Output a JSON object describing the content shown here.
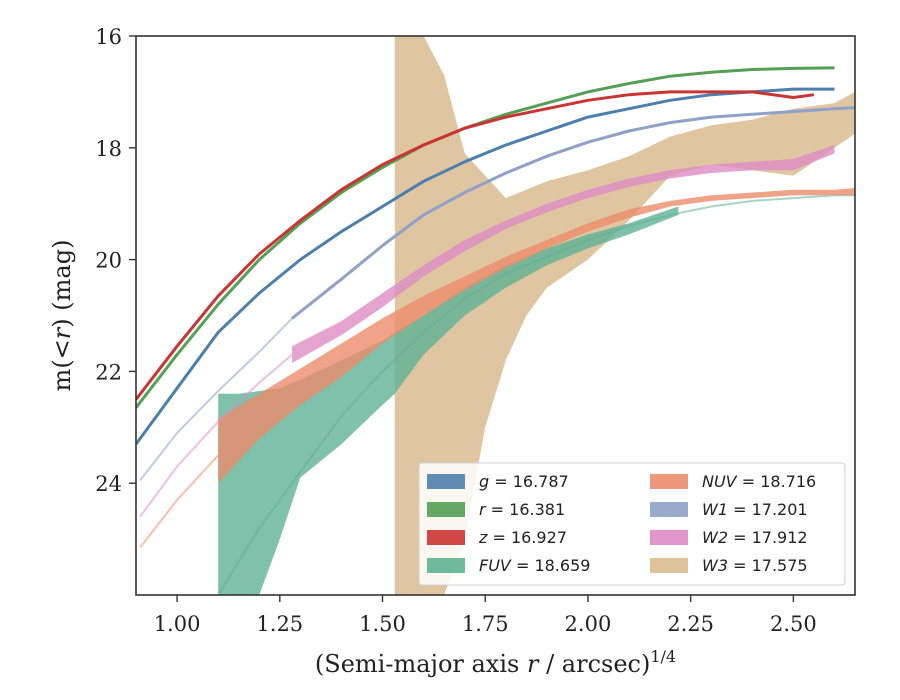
{
  "chart_data": {
    "type": "line",
    "title": "",
    "xlabel": "(Semi-major axis r / arcsec)",
    "xlabel_parts": {
      "pre": "(Semi-major axis ",
      "var": "r",
      "post": " / arcsec)",
      "sup": "1/4"
    },
    "ylabel": "m(< r) (mag)",
    "ylabel_parts": {
      "pre": "m(<",
      "var": "r",
      "post": ") (mag)"
    },
    "xlim": [
      0.9,
      2.65
    ],
    "ylim": [
      26.0,
      16.0
    ],
    "y_inverted": true,
    "xticks": [
      "1.00",
      "1.25",
      "1.50",
      "1.75",
      "2.00",
      "2.25",
      "2.50"
    ],
    "xtick_values": [
      1.0,
      1.25,
      1.5,
      1.75,
      2.0,
      2.25,
      2.5
    ],
    "yticks": [
      "16",
      "18",
      "20",
      "22",
      "24"
    ],
    "ytick_values": [
      16,
      18,
      20,
      22,
      24
    ],
    "grid": false,
    "legend_position": "lower-right",
    "legend_columns": 2,
    "series": [
      {
        "name": "g = 16.787",
        "band": "g",
        "mag": "16.787",
        "color": "#4c7fac",
        "x": [
          0.9,
          1.0,
          1.1,
          1.2,
          1.3,
          1.4,
          1.5,
          1.6,
          1.7,
          1.8,
          1.9,
          2.0,
          2.1,
          2.2,
          2.3,
          2.4,
          2.5,
          2.6
        ],
        "y": [
          23.3,
          22.3,
          21.3,
          20.6,
          20.0,
          19.5,
          19.05,
          18.6,
          18.25,
          17.95,
          17.7,
          17.45,
          17.3,
          17.15,
          17.05,
          17.0,
          16.95,
          16.95
        ]
      },
      {
        "name": "r = 16.381",
        "band": "r",
        "mag": "16.381",
        "color": "#55a055",
        "x": [
          0.9,
          1.0,
          1.1,
          1.2,
          1.3,
          1.4,
          1.5,
          1.6,
          1.7,
          1.8,
          1.9,
          2.0,
          2.1,
          2.2,
          2.3,
          2.4,
          2.5,
          2.6
        ],
        "y": [
          22.65,
          21.7,
          20.8,
          20.0,
          19.35,
          18.8,
          18.35,
          17.95,
          17.65,
          17.4,
          17.2,
          17.0,
          16.85,
          16.72,
          16.65,
          16.6,
          16.58,
          16.57
        ]
      },
      {
        "name": "z = 16.927",
        "band": "z",
        "mag": "16.927",
        "color": "#cc3333",
        "x": [
          0.9,
          1.0,
          1.1,
          1.2,
          1.3,
          1.4,
          1.5,
          1.6,
          1.7,
          1.8,
          1.9,
          2.0,
          2.1,
          2.2,
          2.3,
          2.4,
          2.5,
          2.55
        ],
        "y": [
          22.5,
          21.55,
          20.65,
          19.9,
          19.3,
          18.75,
          18.3,
          17.95,
          17.65,
          17.45,
          17.3,
          17.15,
          17.05,
          17.0,
          17.0,
          17.0,
          17.1,
          17.05
        ]
      },
      {
        "name": "FUV = 18.659",
        "band": "FUV",
        "mag": "18.659",
        "color": "#5fb195",
        "x": [
          1.1,
          1.15,
          1.2,
          1.25,
          1.3,
          1.4,
          1.5,
          1.53,
          1.6,
          1.7,
          1.8,
          1.9,
          2.0,
          2.1,
          2.22
        ],
        "y_upper": [
          22.4,
          22.4,
          22.35,
          22.3,
          22.15,
          21.8,
          21.45,
          21.3,
          21.0,
          20.5,
          20.1,
          19.8,
          19.55,
          19.35,
          19.05
        ],
        "y_lower": [
          26.0,
          26.0,
          26.0,
          25.0,
          23.9,
          23.3,
          22.6,
          22.4,
          21.7,
          21.0,
          20.5,
          20.1,
          19.8,
          19.55,
          19.2
        ],
        "x_ext": [
          1.1,
          1.2,
          1.3,
          1.4,
          1.5,
          1.6,
          1.7,
          1.8,
          1.9,
          2.0,
          2.1,
          2.2,
          2.3,
          2.4,
          2.5,
          2.6,
          2.65
        ],
        "y_ext": [
          26.0,
          24.8,
          23.8,
          22.8,
          22.0,
          21.3,
          20.7,
          20.25,
          19.95,
          19.65,
          19.4,
          19.2,
          19.05,
          18.95,
          18.9,
          18.85,
          18.85
        ]
      },
      {
        "name": "NUV = 18.716",
        "band": "NUV",
        "mag": "18.716",
        "color": "#ec8c6c",
        "x": [
          1.1,
          1.2,
          1.3,
          1.4,
          1.5,
          1.6,
          1.7,
          1.8,
          1.9,
          2.0,
          2.1,
          2.2,
          2.3,
          2.4,
          2.5,
          2.6,
          2.65
        ],
        "y_upper": [
          22.85,
          22.4,
          21.95,
          21.5,
          21.05,
          20.65,
          20.3,
          19.95,
          19.65,
          19.35,
          19.1,
          18.95,
          18.85,
          18.8,
          18.75,
          18.75,
          18.72
        ],
        "y_lower": [
          24.0,
          23.2,
          22.6,
          22.1,
          21.5,
          21.0,
          20.55,
          20.15,
          19.8,
          19.5,
          19.25,
          19.05,
          18.95,
          18.9,
          18.85,
          18.85,
          18.85
        ],
        "x_ext": [
          0.91,
          1.0,
          1.1
        ],
        "y_ext": [
          25.15,
          24.3,
          23.5
        ]
      },
      {
        "name": "W1 = 17.201",
        "band": "W1",
        "mag": "17.201",
        "color": "#8fa1c8",
        "x": [
          1.28,
          1.4,
          1.5,
          1.6,
          1.7,
          1.8,
          1.9,
          2.0,
          2.1,
          2.2,
          2.3,
          2.4,
          2.5,
          2.6,
          2.65
        ],
        "y": [
          21.05,
          20.35,
          19.75,
          19.2,
          18.8,
          18.45,
          18.15,
          17.9,
          17.7,
          17.55,
          17.45,
          17.4,
          17.35,
          17.3,
          17.28
        ],
        "x_ext": [
          0.91,
          1.0,
          1.1,
          1.2,
          1.28
        ],
        "y_ext": [
          23.95,
          23.1,
          22.35,
          21.65,
          21.05
        ]
      },
      {
        "name": "W2 = 17.912",
        "band": "W2",
        "mag": "17.912",
        "color": "#de8cc4",
        "x": [
          1.28,
          1.4,
          1.5,
          1.6,
          1.7,
          1.8,
          1.9,
          2.0,
          2.1,
          2.2,
          2.3,
          2.4,
          2.5,
          2.6
        ],
        "y_upper": [
          21.55,
          21.1,
          20.6,
          20.1,
          19.65,
          19.3,
          19.0,
          18.75,
          18.55,
          18.4,
          18.3,
          18.25,
          18.2,
          17.95
        ],
        "y_lower": [
          21.85,
          21.35,
          20.85,
          20.3,
          19.85,
          19.45,
          19.15,
          18.9,
          18.7,
          18.55,
          18.45,
          18.4,
          18.4,
          18.1
        ],
        "x_ext": [
          0.91,
          1.0,
          1.1,
          1.2,
          1.28
        ],
        "y_ext": [
          24.6,
          23.7,
          22.9,
          22.2,
          21.7
        ]
      },
      {
        "name": "W3 = 17.575",
        "band": "W3",
        "mag": "17.575",
        "color": "#d9bb8f",
        "x": [
          1.53,
          1.55,
          1.6,
          1.65,
          1.7,
          1.75,
          1.8,
          1.85,
          1.9,
          2.0,
          2.1,
          2.2,
          2.3,
          2.4,
          2.5,
          2.6,
          2.65
        ],
        "y_upper": [
          16.0,
          16.0,
          16.0,
          16.7,
          18.1,
          18.5,
          18.9,
          18.75,
          18.6,
          18.4,
          18.15,
          17.8,
          17.6,
          17.5,
          17.3,
          17.2,
          17.0
        ],
        "y_lower": [
          26.0,
          26.0,
          26.0,
          26.0,
          25.0,
          23.0,
          21.8,
          21.0,
          20.5,
          20.0,
          19.3,
          18.5,
          18.3,
          18.4,
          18.5,
          18.0,
          17.75
        ]
      }
    ]
  }
}
